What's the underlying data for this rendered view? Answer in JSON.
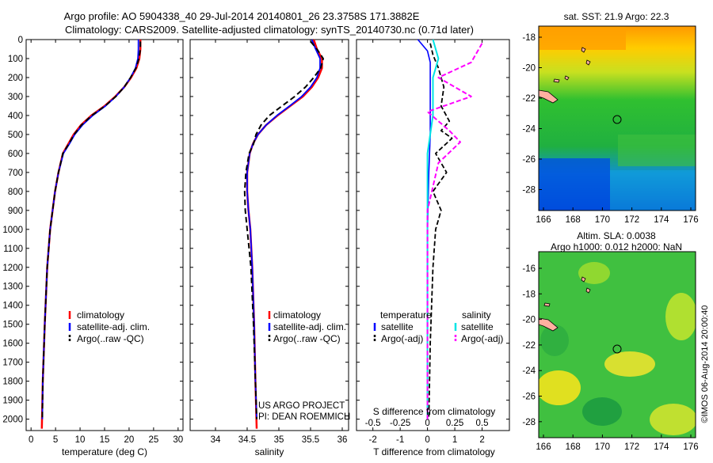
{
  "title": {
    "line1": "Argo profile: AO 5904338_40 29-Jul-2014 20140801_26 23.3758S 171.3882E",
    "line2": "Climatology: CARS2009. Satellite-adjusted climatology: synTS_20140730.nc (0.71d later)"
  },
  "colors": {
    "climatology": "#ff0000",
    "satellite": "#0000ff",
    "argo": "#000000",
    "salinity_satellite": "#00e5e5",
    "salinity_argo": "#ff00ff"
  },
  "chart_data": [
    {
      "type": "line",
      "xlabel": "temperature (deg C)",
      "ylabel": "",
      "xlim": [
        -1,
        31
      ],
      "ylim": [
        2060,
        0
      ],
      "xticks": [
        "0",
        "5",
        "10",
        "15",
        "20",
        "25",
        "30"
      ],
      "yticks": [
        "0",
        "100",
        "200",
        "300",
        "400",
        "500",
        "600",
        "700",
        "800",
        "900",
        "1000",
        "1100",
        "1200",
        "1300",
        "1400",
        "1500",
        "1600",
        "1700",
        "1800",
        "1900",
        "2000"
      ],
      "legend": [
        "climatology",
        "satellite-adj. clim.",
        "Argo(..raw -QC)"
      ],
      "series": [
        {
          "name": "climatology",
          "x": [
            22.3,
            22.3,
            22.1,
            21.5,
            20.4,
            19.0,
            17.2,
            15.0,
            12.3,
            10.2,
            8.7,
            7.6,
            6.5,
            5.6,
            4.9,
            4.4,
            3.9,
            3.3,
            2.8,
            2.4,
            2.2
          ],
          "y": [
            0,
            50,
            100,
            150,
            200,
            250,
            300,
            350,
            400,
            450,
            500,
            550,
            600,
            700,
            800,
            900,
            1000,
            1200,
            1500,
            1800,
            2050
          ]
        },
        {
          "name": "satellite-adj. clim.",
          "x": [
            21.9,
            21.9,
            21.8,
            21.3,
            20.3,
            19.0,
            17.3,
            15.2,
            12.6,
            10.5,
            8.9,
            7.8,
            6.6,
            5.6,
            4.9,
            4.4,
            3.9,
            3.3,
            2.8,
            2.4,
            2.3
          ],
          "y": [
            0,
            50,
            100,
            150,
            200,
            250,
            300,
            350,
            400,
            450,
            500,
            550,
            600,
            700,
            800,
            900,
            1000,
            1200,
            1500,
            1800,
            2000
          ]
        },
        {
          "name": "Argo(..raw -QC)",
          "x": [
            22.3,
            22.3,
            22.0,
            21.4,
            20.3,
            19.0,
            17.3,
            15.1,
            12.4,
            10.3,
            8.8,
            7.7,
            6.5,
            5.6,
            4.9,
            4.4,
            3.9,
            3.3,
            2.8,
            2.4,
            2.3
          ],
          "y": [
            10,
            50,
            100,
            150,
            200,
            250,
            300,
            350,
            400,
            450,
            500,
            550,
            600,
            700,
            800,
            900,
            1000,
            1200,
            1500,
            1800,
            2000
          ]
        }
      ]
    },
    {
      "type": "line",
      "xlabel": "salinity",
      "xlim": [
        33.6,
        36.1
      ],
      "ylim": [
        2060,
        0
      ],
      "xticks": [
        "34",
        "34.5",
        "35",
        "35.5",
        "36"
      ],
      "legend": [
        "climatology",
        "satellite-adj. clim.",
        "Argo(..raw -QC)"
      ],
      "annotation": [
        "US ARGO PROJECT",
        "PI: DEAN ROEMMICH"
      ],
      "series": [
        {
          "name": "climatology",
          "x": [
            35.55,
            35.6,
            35.68,
            35.68,
            35.62,
            35.52,
            35.38,
            35.18,
            34.98,
            34.8,
            34.67,
            34.59,
            34.54,
            34.5,
            34.5,
            34.52,
            34.55,
            34.58,
            34.61,
            34.63,
            34.65
          ],
          "y": [
            0,
            50,
            100,
            150,
            200,
            250,
            300,
            350,
            400,
            450,
            500,
            550,
            600,
            700,
            800,
            900,
            1000,
            1200,
            1500,
            1800,
            2050
          ]
        },
        {
          "name": "satellite-adj. clim.",
          "x": [
            35.52,
            35.58,
            35.65,
            35.65,
            35.6,
            35.5,
            35.36,
            35.17,
            34.97,
            34.8,
            34.67,
            34.59,
            34.54,
            34.5,
            34.5,
            34.52,
            34.55,
            34.58,
            34.61,
            34.63,
            34.65
          ],
          "y": [
            0,
            50,
            100,
            150,
            200,
            250,
            300,
            350,
            400,
            450,
            500,
            550,
            600,
            700,
            800,
            900,
            1000,
            1200,
            1500,
            1800,
            2000
          ]
        },
        {
          "name": "Argo(..raw -QC)",
          "x": [
            35.5,
            35.6,
            35.7,
            35.66,
            35.55,
            35.42,
            35.25,
            35.05,
            34.85,
            34.72,
            34.64,
            34.6,
            34.53,
            34.48,
            34.46,
            34.47,
            34.5,
            34.56,
            34.6,
            34.63,
            34.65
          ],
          "y": [
            10,
            50,
            100,
            150,
            200,
            250,
            300,
            350,
            400,
            450,
            500,
            550,
            600,
            700,
            800,
            900,
            1000,
            1200,
            1500,
            1800,
            2000
          ]
        }
      ]
    },
    {
      "type": "line",
      "xlabel": "T difference from climatology",
      "xlabel_top": "S difference from climatology",
      "xlim": [
        -2.6,
        3
      ],
      "ylim": [
        2060,
        0
      ],
      "xticks": [
        "-2",
        "-1",
        "0",
        "1",
        "2"
      ],
      "xticks_top": [
        "-0.5",
        "-0.25",
        "0",
        "0.25",
        "0.5"
      ],
      "legend_titles": [
        "temperature",
        "salinity"
      ],
      "legend_temperature": [
        "satellite",
        "Argo(-adj)"
      ],
      "legend_salinity": [
        "satellite",
        "Argo(-adj)"
      ],
      "series": [
        {
          "name": "temperature satellite",
          "x": [
            -0.35,
            0.0,
            0.1,
            0.1,
            0.1,
            0.1,
            0.05,
            0.0,
            0.0,
            0.0,
            0.0
          ],
          "y": [
            0,
            60,
            120,
            200,
            300,
            500,
            700,
            1000,
            1400,
            1800,
            2000
          ]
        },
        {
          "name": "temperature Argo(-adj)",
          "x": [
            0.1,
            0.2,
            0.4,
            0.6,
            0.5,
            0.8,
            0.5,
            0.9,
            0.3,
            0.7,
            0.2,
            0.5,
            0.3,
            0.2,
            0.1,
            0.05
          ],
          "y": [
            20,
            80,
            150,
            250,
            350,
            430,
            480,
            520,
            600,
            700,
            800,
            900,
            1000,
            1200,
            1600,
            2000
          ]
        },
        {
          "name": "salinity satellite",
          "x": [
            0.05,
            0.1,
            0.05,
            0.05,
            0.0,
            0.0,
            0.0,
            0.0,
            0.0
          ],
          "y": [
            0,
            100,
            200,
            400,
            600,
            900,
            1300,
            1700,
            2000
          ]
        },
        {
          "name": "salinity Argo(-adj)",
          "x": [
            0.5,
            0.4,
            0.1,
            0.4,
            0.0,
            0.2,
            0.3,
            0.1,
            0.0,
            0.0,
            0.0
          ],
          "y": [
            20,
            120,
            200,
            300,
            380,
            480,
            540,
            650,
            900,
            1400,
            2000
          ]
        }
      ]
    },
    {
      "type": "heatmap",
      "title": "sat. SST: 21.9 Argo: 22.3",
      "xticks": [
        "166",
        "168",
        "170",
        "172",
        "174",
        "176"
      ],
      "yticks": [
        "-18",
        "-20",
        "-22",
        "-24",
        "-26",
        "-28"
      ]
    },
    {
      "type": "heatmap",
      "title": "Altim. SLA: 0.0038",
      "subtitle": "Argo h1000: 0.012 h2000: NaN",
      "xticks": [
        "166",
        "168",
        "170",
        "172",
        "174",
        "176"
      ],
      "yticks": [
        "-16",
        "-18",
        "-20",
        "-22",
        "-24",
        "-26",
        "-28"
      ],
      "side_label": "©IMOS 06-Aug-2014 20:00:40"
    }
  ]
}
